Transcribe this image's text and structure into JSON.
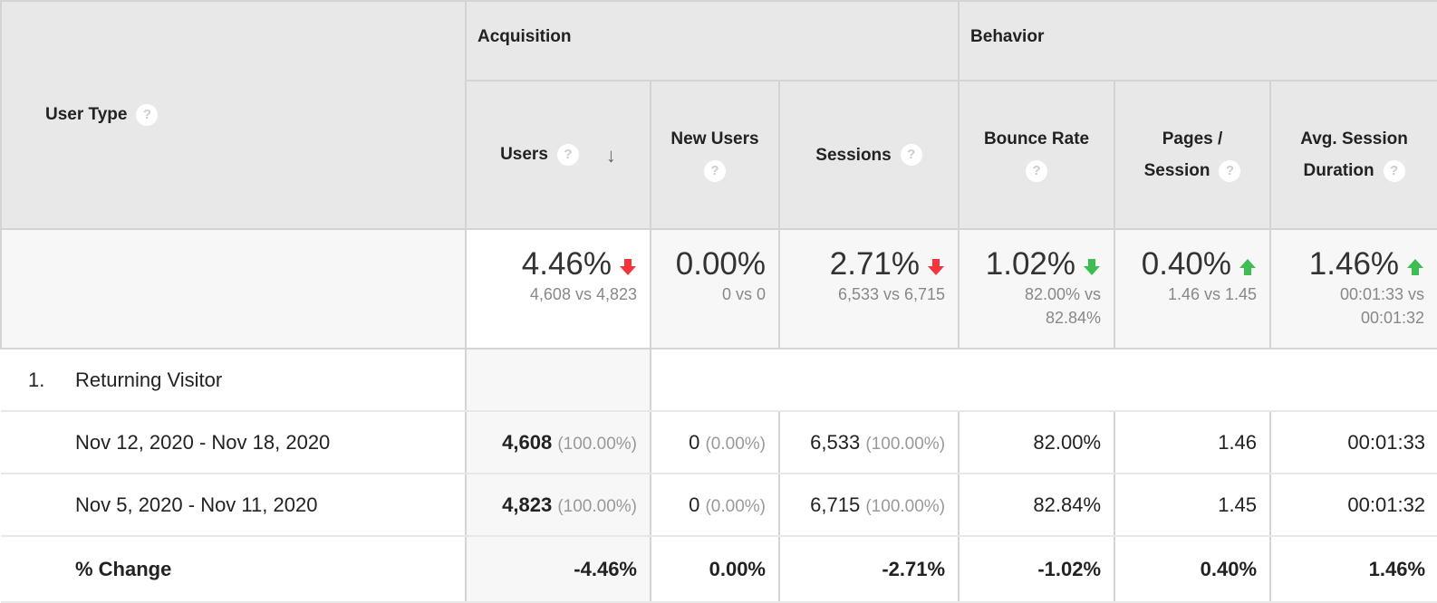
{
  "header": {
    "dimension": "User Type",
    "groups": [
      "Acquisition",
      "Behavior"
    ],
    "columns": [
      {
        "label1": "Users",
        "label2": "",
        "sorted": true
      },
      {
        "label1": "New Users",
        "label2": ""
      },
      {
        "label1": "Sessions",
        "label2": ""
      },
      {
        "label1": "Bounce Rate",
        "label2": ""
      },
      {
        "label1": "Pages /",
        "label2": "Session"
      },
      {
        "label1": "Avg. Session",
        "label2": "Duration"
      }
    ],
    "help": "?",
    "sort_icon": "arrow-down-icon"
  },
  "summary": [
    {
      "value": "4.46%",
      "compare": "4,608 vs 4,823",
      "trend": "down",
      "color": "#f4363c"
    },
    {
      "value": "0.00%",
      "compare": "0 vs 0",
      "trend": "none"
    },
    {
      "value": "2.71%",
      "compare": "6,533 vs 6,715",
      "trend": "down",
      "color": "#f4363c"
    },
    {
      "value": "1.02%",
      "compare": "82.00% vs 82.84%",
      "trend": "down",
      "color": "#3ebd53"
    },
    {
      "value": "0.40%",
      "compare": "1.46 vs 1.45",
      "trend": "up",
      "color": "#3ebd53"
    },
    {
      "value": "1.46%",
      "compare": "00:01:33 vs 00:01:32",
      "trend": "up",
      "color": "#3ebd53"
    }
  ],
  "group_row": {
    "index": "1.",
    "label": "Returning Visitor"
  },
  "rows": [
    {
      "label": "Nov 12, 2020 - Nov 18, 2020",
      "users": "4,608",
      "users_pct": "(100.00%)",
      "new_users": "0",
      "new_users_pct": "(0.00%)",
      "sessions": "6,533",
      "sessions_pct": "(100.00%)",
      "bounce": "82.00%",
      "pages": "1.46",
      "duration": "00:01:33"
    },
    {
      "label": "Nov 5, 2020 - Nov 11, 2020",
      "users": "4,823",
      "users_pct": "(100.00%)",
      "new_users": "0",
      "new_users_pct": "(0.00%)",
      "sessions": "6,715",
      "sessions_pct": "(100.00%)",
      "bounce": "82.84%",
      "pages": "1.45",
      "duration": "00:01:32"
    }
  ],
  "change": {
    "label": "% Change",
    "users": "-4.46%",
    "new_users": "0.00%",
    "sessions": "-2.71%",
    "bounce": "-1.02%",
    "pages": "0.40%",
    "duration": "1.46%"
  }
}
